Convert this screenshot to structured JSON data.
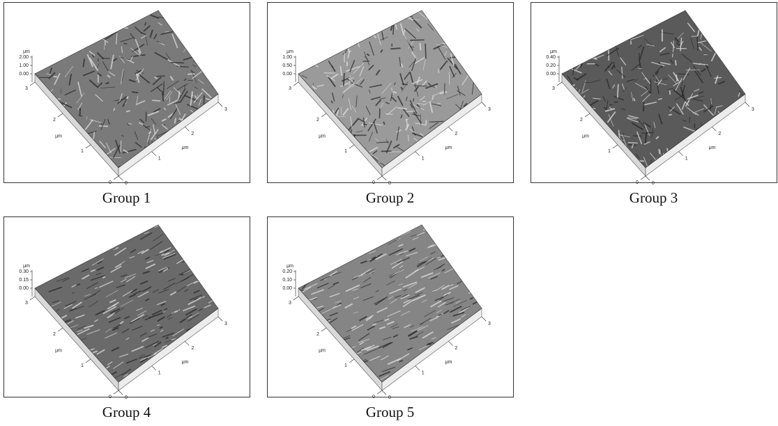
{
  "panels": [
    {
      "caption": "Group 1",
      "z_unit": "μm",
      "z_ticks": [
        "2.00",
        "1.00",
        "0.00"
      ],
      "x_unit": "μm",
      "y_unit": "μm",
      "x_ticks": [
        "0",
        "1",
        "2",
        "3"
      ],
      "y_ticks": [
        "0",
        "1",
        "2",
        "3"
      ]
    },
    {
      "caption": "Group 2",
      "z_unit": "μm",
      "z_ticks": [
        "1.00",
        "0.50",
        "0.00"
      ],
      "x_unit": "μm",
      "y_unit": "μm",
      "x_ticks": [
        "0",
        "1",
        "2",
        "3"
      ],
      "y_ticks": [
        "0",
        "1",
        "2",
        "3"
      ]
    },
    {
      "caption": "Group 3",
      "z_unit": "μm",
      "z_ticks": [
        "0.40",
        "0.20",
        "0.00"
      ],
      "x_unit": "μm",
      "y_unit": "μm",
      "x_ticks": [
        "0",
        "1",
        "2",
        "3"
      ],
      "y_ticks": [
        "0",
        "1",
        "2",
        "3"
      ]
    },
    {
      "caption": "Group 4",
      "z_unit": "μm",
      "z_ticks": [
        "0.30",
        "0.15",
        "0.00"
      ],
      "x_unit": "μm",
      "y_unit": "μm",
      "x_ticks": [
        "0",
        "1",
        "2",
        "3"
      ],
      "y_ticks": [
        "0",
        "1",
        "2",
        "3"
      ]
    },
    {
      "caption": "Group 5",
      "z_unit": "μm",
      "z_ticks": [
        "0.20",
        "0.10",
        "0.00"
      ],
      "x_unit": "μm",
      "y_unit": "μm",
      "x_ticks": [
        "0",
        "1",
        "2",
        "3"
      ],
      "y_ticks": [
        "0",
        "1",
        "2",
        "3"
      ]
    }
  ]
}
